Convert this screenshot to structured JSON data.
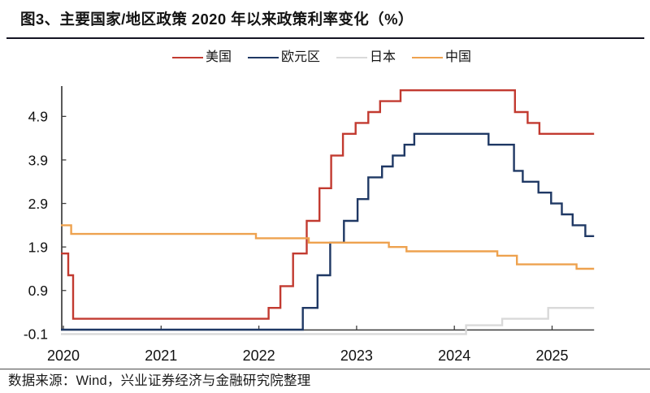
{
  "title": "图3、主要国家/地区政策 2020 年以来政策利率变化（%）",
  "source_note": "数据来源：Wind，兴业证券经济与金融研究院整理",
  "colors": {
    "title_text": "#141414",
    "title_rule": "#141422",
    "axis_line": "#3d3d3d",
    "tick_label": "#111111",
    "footer_rule": "#4c4c4c",
    "background": "#ffffff"
  },
  "chart_data": {
    "type": "line",
    "line_style": "step-after",
    "title": "主要国家/地区政策 2020 年以来政策利率变化（%）",
    "unit": "%",
    "grid": false,
    "legend_position": "top-center",
    "xlim": [
      2019.975,
      2025.43
    ],
    "ylim": [
      -0.16,
      5.66
    ],
    "x_ticks": [
      "2020",
      "2021",
      "2022",
      "2023",
      "2024",
      "2025"
    ],
    "x_tick_values": [
      2020,
      2021,
      2022,
      2023,
      2024,
      2025
    ],
    "y_ticks": [
      "-0.1",
      "0.9",
      "1.9",
      "2.9",
      "3.9",
      "4.9"
    ],
    "y_tick_values": [
      -0.1,
      0.9,
      1.9,
      2.9,
      3.9,
      4.9
    ],
    "x_end": 2025.43,
    "series": [
      {
        "name": "美国",
        "color": "#C23A30",
        "steps": [
          [
            2019.975,
            1.75
          ],
          [
            2020.05,
            1.25
          ],
          [
            2020.1,
            0.25
          ],
          [
            2022.1,
            0.5
          ],
          [
            2022.22,
            1.0
          ],
          [
            2022.35,
            1.75
          ],
          [
            2022.49,
            2.5
          ],
          [
            2022.62,
            3.25
          ],
          [
            2022.74,
            4.0
          ],
          [
            2022.86,
            4.5
          ],
          [
            2022.99,
            4.75
          ],
          [
            2023.12,
            5.0
          ],
          [
            2023.24,
            5.25
          ],
          [
            2023.45,
            5.5
          ],
          [
            2024.62,
            5.0
          ],
          [
            2024.75,
            4.75
          ],
          [
            2024.87,
            4.5
          ]
        ]
      },
      {
        "name": "欧元区",
        "color": "#1F3864",
        "steps": [
          [
            2019.975,
            0.0
          ],
          [
            2022.45,
            0.5
          ],
          [
            2022.6,
            1.25
          ],
          [
            2022.73,
            2.0
          ],
          [
            2022.87,
            2.5
          ],
          [
            2023.01,
            3.0
          ],
          [
            2023.12,
            3.5
          ],
          [
            2023.26,
            3.75
          ],
          [
            2023.37,
            4.0
          ],
          [
            2023.49,
            4.25
          ],
          [
            2023.59,
            4.5
          ],
          [
            2024.35,
            4.25
          ],
          [
            2024.61,
            3.65
          ],
          [
            2024.7,
            3.4
          ],
          [
            2024.86,
            3.15
          ],
          [
            2024.99,
            2.9
          ],
          [
            2025.1,
            2.65
          ],
          [
            2025.21,
            2.4
          ],
          [
            2025.34,
            2.15
          ]
        ]
      },
      {
        "name": "日本",
        "color": "#D9D9D9",
        "steps": [
          [
            2019.975,
            -0.1
          ],
          [
            2024.12,
            0.1
          ],
          [
            2024.49,
            0.25
          ],
          [
            2024.96,
            0.5
          ]
        ]
      },
      {
        "name": "中国",
        "color": "#EEA24F",
        "steps": [
          [
            2019.975,
            2.4
          ],
          [
            2020.08,
            2.2
          ],
          [
            2021.97,
            2.1
          ],
          [
            2022.51,
            2.0
          ],
          [
            2023.33,
            1.9
          ],
          [
            2023.51,
            1.8
          ],
          [
            2024.44,
            1.7
          ],
          [
            2024.64,
            1.5
          ],
          [
            2025.25,
            1.4
          ]
        ]
      }
    ]
  }
}
